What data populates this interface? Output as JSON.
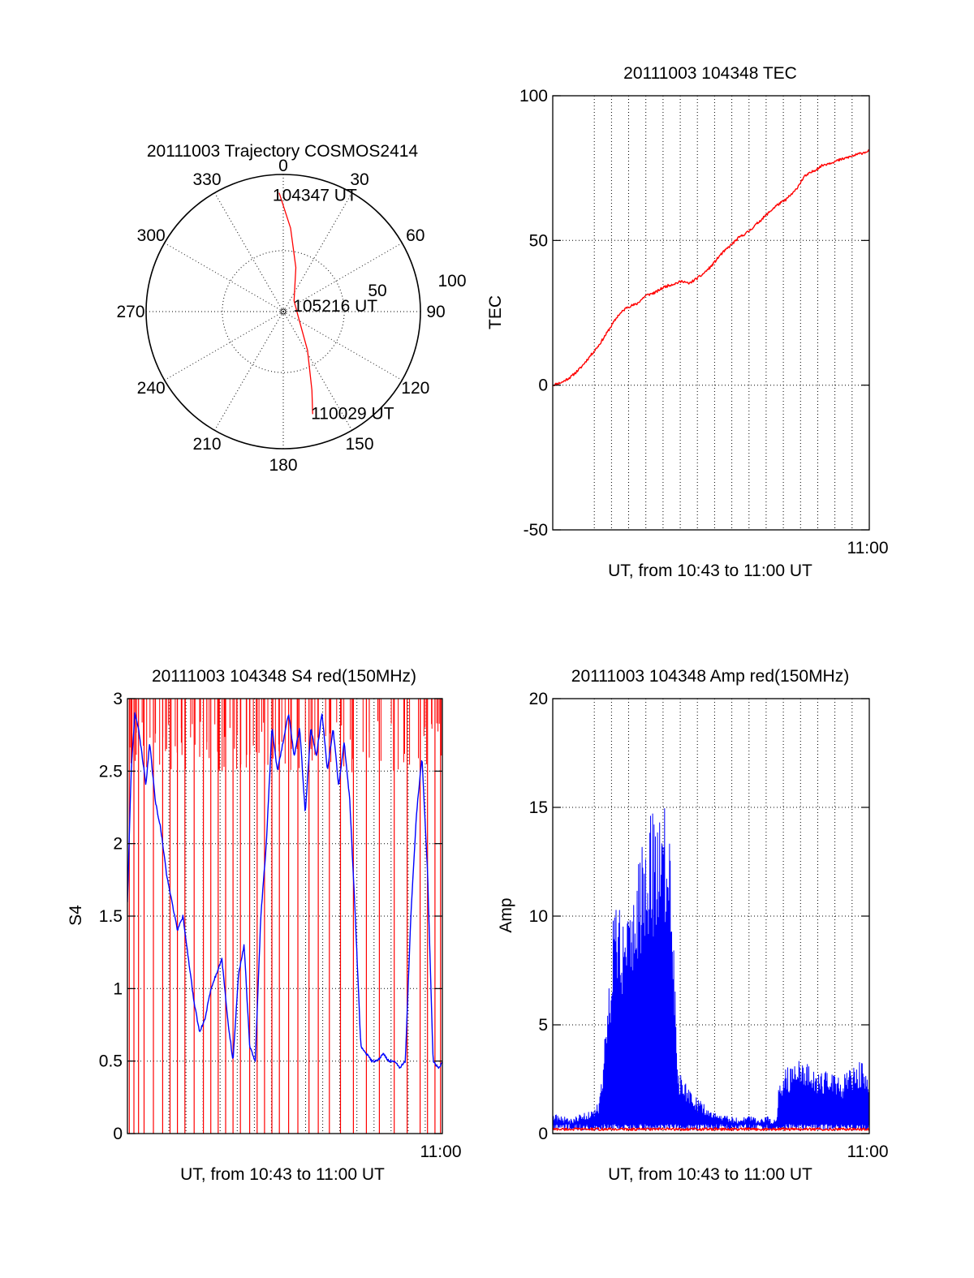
{
  "colors": {
    "red": "#ff0000",
    "blue": "#0000ff",
    "axis": "#000000",
    "background": "#ffffff"
  },
  "chart_data": [
    {
      "id": "trajectory",
      "type": "polar",
      "title": "20111003 Trajectory COSMOS2414",
      "azimuth_labels": [
        "0",
        "30",
        "60",
        "90",
        "120",
        "150",
        "180",
        "210",
        "240",
        "270",
        "300",
        "330"
      ],
      "elevation_ring_labels": [
        "50",
        "100"
      ],
      "elevation_rings": [
        50
      ],
      "series": [
        {
          "color": "#ff0000",
          "points": [
            {
              "az": 358,
              "el": 12
            },
            {
              "az": 5,
              "el": 35
            },
            {
              "az": 16,
              "el": 60
            },
            {
              "az": 45,
              "el": 80
            },
            {
              "az": 105,
              "el": 80
            },
            {
              "az": 148,
              "el": 60
            },
            {
              "az": 160,
              "el": 35
            },
            {
              "az": 164,
              "el": 20
            }
          ]
        }
      ],
      "annotations": [
        {
          "text": "104347 UT",
          "az": 358,
          "el": 12
        },
        {
          "text": "105216 UT",
          "az": 80,
          "el": 78
        },
        {
          "text": "110029 UT",
          "az": 164,
          "el": 20
        }
      ]
    },
    {
      "id": "tec",
      "type": "line",
      "title": "20111003 104348 TEC",
      "xlabel": "UT, from 10:43 to 11:00 UT",
      "ylabel": "TEC",
      "xlim": [
        0,
        17
      ],
      "ylim": [
        -50,
        100
      ],
      "yticks": [
        "-50",
        "0",
        "50",
        "100"
      ],
      "xtick_labels": [
        {
          "x": 17,
          "label": "11:00"
        }
      ],
      "grid": true,
      "series": [
        {
          "color": "#ff0000",
          "x": [
            0.0,
            0.5,
            1.0,
            1.5,
            2.0,
            2.5,
            3.0,
            3.5,
            4.0,
            4.5,
            5.0,
            5.5,
            6.0,
            6.5,
            7.0,
            7.3,
            8.0,
            8.5,
            9.0,
            9.5,
            10.0,
            10.5,
            11.0,
            11.5,
            12.0,
            12.5,
            13.0,
            13.5,
            14.0,
            14.5,
            15.0,
            15.5,
            16.0,
            16.5,
            17.0
          ],
          "y": [
            0,
            1,
            3,
            6,
            10,
            14,
            19,
            24,
            27,
            28,
            31,
            32,
            34,
            35,
            36,
            35,
            38,
            41,
            45,
            48,
            51,
            53,
            56,
            59,
            62,
            64,
            67,
            72,
            74,
            76,
            77,
            78,
            79,
            80,
            81
          ]
        }
      ]
    },
    {
      "id": "s4",
      "type": "line",
      "title": "20111003 104348 S4 red(150MHz)",
      "xlabel": "UT, from 10:43 to 11:00 UT",
      "ylabel": "S4",
      "xlim": [
        0,
        17
      ],
      "ylim": [
        0,
        3
      ],
      "yticks": [
        "0",
        "0.5",
        "1",
        "1.5",
        "2",
        "2.5",
        "3"
      ],
      "xtick_labels": [
        {
          "x": 17,
          "label": "11:00"
        }
      ],
      "grid": true,
      "series": [
        {
          "color": "#ff0000",
          "spikes_x": [
            0.1,
            0.35,
            0.6,
            0.9,
            1.4,
            1.9,
            2.3,
            2.7,
            3.1,
            3.6,
            4.1,
            4.5,
            4.9,
            5.3,
            5.7,
            6.1,
            6.6,
            7.0,
            7.4,
            7.8,
            8.2,
            8.7,
            9.2,
            9.8,
            10.3,
            10.9,
            11.5,
            12.2,
            12.9,
            13.6,
            14.4,
            15.1,
            15.8,
            16.2,
            16.6,
            16.9
          ]
        },
        {
          "color": "#0000ff",
          "x": [
            0.0,
            0.2,
            0.4,
            0.6,
            0.8,
            1.0,
            1.2,
            1.5,
            1.8,
            2.1,
            2.4,
            2.7,
            3.0,
            3.3,
            3.6,
            3.9,
            4.2,
            4.5,
            4.8,
            5.1,
            5.4,
            5.7,
            6.0,
            6.3,
            6.6,
            6.9,
            7.2,
            7.5,
            7.8,
            8.1,
            8.4,
            8.7,
            9.0,
            9.3,
            9.6,
            9.9,
            10.2,
            10.5,
            10.8,
            11.1,
            11.4,
            11.7,
            12.0,
            12.3,
            12.6,
            12.9,
            13.2,
            13.5,
            13.8,
            14.1,
            14.4,
            14.7,
            15.0,
            15.3,
            15.6,
            15.9,
            16.2,
            16.5,
            16.8,
            17.0
          ],
          "y": [
            1.6,
            2.5,
            2.9,
            2.8,
            2.6,
            2.4,
            2.7,
            2.3,
            2.1,
            1.8,
            1.6,
            1.4,
            1.5,
            1.2,
            0.9,
            0.7,
            0.8,
            1.0,
            1.1,
            1.2,
            0.8,
            0.5,
            1.1,
            1.3,
            0.6,
            0.5,
            1.5,
            2.0,
            2.8,
            2.5,
            2.7,
            2.9,
            2.6,
            2.8,
            2.2,
            2.8,
            2.6,
            2.9,
            2.5,
            2.8,
            2.4,
            2.7,
            2.3,
            1.5,
            0.6,
            0.55,
            0.5,
            0.5,
            0.55,
            0.5,
            0.5,
            0.45,
            0.5,
            1.5,
            2.2,
            2.6,
            1.8,
            0.5,
            0.45,
            0.5
          ]
        }
      ]
    },
    {
      "id": "amp",
      "type": "line",
      "title": "20111003 104348 Amp red(150MHz)",
      "xlabel": "UT, from 10:43 to 11:00 UT",
      "ylabel": "Amp",
      "xlim": [
        0,
        17
      ],
      "ylim": [
        0,
        20
      ],
      "yticks": [
        "0",
        "5",
        "10",
        "15",
        "20"
      ],
      "xtick_labels": [
        {
          "x": 17,
          "label": "11:00"
        }
      ],
      "grid": true,
      "series": [
        {
          "color": "#0000ff",
          "x": [
            0.0,
            0.5,
            1.0,
            1.5,
            2.0,
            2.5,
            2.8,
            3.1,
            3.4,
            3.7,
            4.0,
            4.3,
            4.6,
            4.9,
            5.2,
            5.5,
            5.8,
            6.1,
            6.4,
            6.7,
            7.0,
            7.5,
            8.0,
            8.5,
            9.0,
            9.5,
            10.0,
            10.5,
            11.0,
            11.5,
            12.0,
            12.2,
            12.5,
            13.0,
            13.5,
            14.0,
            14.5,
            15.0,
            15.5,
            16.0,
            16.5,
            17.0
          ],
          "y": [
            0.9,
            0.8,
            0.7,
            0.9,
            1.0,
            1.5,
            4.5,
            8.0,
            11.8,
            9.5,
            10.5,
            12.0,
            13.0,
            14.2,
            15.0,
            14.5,
            15.2,
            15.5,
            12.0,
            3.0,
            2.5,
            1.8,
            1.5,
            1.0,
            0.9,
            0.8,
            0.7,
            0.8,
            0.7,
            0.8,
            0.6,
            2.8,
            3.0,
            3.2,
            3.5,
            3.0,
            2.8,
            3.2,
            2.6,
            3.0,
            3.5,
            2.8
          ]
        },
        {
          "color": "#ff0000",
          "x": [
            12.3,
            17.0
          ],
          "y": [
            0.2,
            0.2
          ]
        }
      ]
    }
  ]
}
